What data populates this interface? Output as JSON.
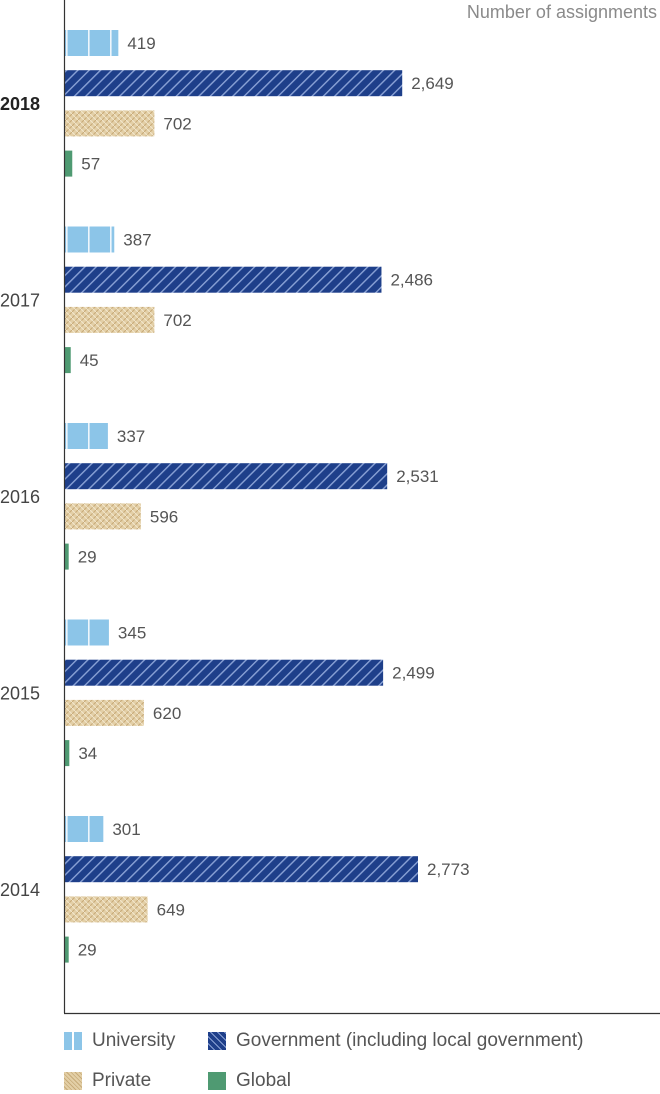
{
  "chart_data": {
    "type": "bar",
    "orientation": "horizontal",
    "unit_label": "Number of assignments",
    "categories": [
      "2018",
      "2017",
      "2016",
      "2015",
      "2014"
    ],
    "highlighted_category": "2018",
    "series": [
      {
        "name": "University",
        "values": [
          419,
          387,
          337,
          345,
          301
        ],
        "color": "#8cc5e8"
      },
      {
        "name": "Government (including local government)",
        "values": [
          2649,
          2486,
          2531,
          2499,
          2773
        ],
        "color": "#1e3f8a"
      },
      {
        "name": "Private",
        "values": [
          702,
          702,
          596,
          620,
          649
        ],
        "color": "#dbc49a"
      },
      {
        "name": "Global",
        "values": [
          57,
          45,
          29,
          34,
          29
        ],
        "color": "#4f9a72"
      }
    ],
    "value_labels": [
      [
        "419",
        "2,649",
        "702",
        "57"
      ],
      [
        "387",
        "2,486",
        "702",
        "45"
      ],
      [
        "337",
        "2,531",
        "596",
        "29"
      ],
      [
        "345",
        "2,499",
        "620",
        "34"
      ],
      [
        "301",
        "2,773",
        "649",
        "29"
      ]
    ],
    "xlim": [
      0,
      4500
    ],
    "legend_position": "bottom",
    "grid": false
  }
}
